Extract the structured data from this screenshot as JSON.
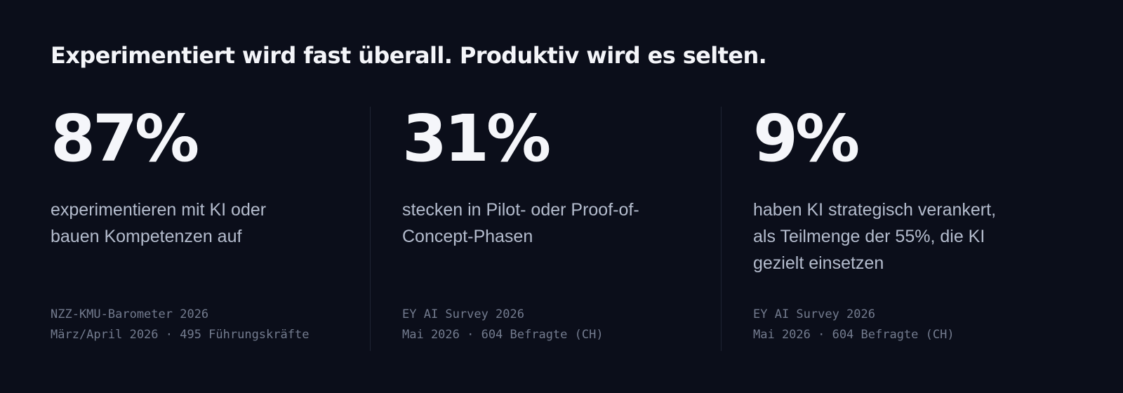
{
  "headline": "Experimentiert wird fast überall. Produktiv wird es selten.",
  "stats": [
    {
      "value": "87%",
      "description": "experimentieren mit KI oder bauen Kompetenzen auf",
      "source_title": "NZZ-KMU-Barometer 2026",
      "source_detail": "März/April 2026 · 495 Führungskräfte"
    },
    {
      "value": "31%",
      "description": "stecken in Pilot- oder Proof-of-Concept-Phasen",
      "source_title": "EY AI Survey 2026",
      "source_detail": "Mai 2026 · 604 Befragte (CH)"
    },
    {
      "value": "9%",
      "description": "haben KI strategisch verankert, als Teilmenge der 55%, die KI gezielt einsetzen",
      "source_title": "EY AI Survey 2026",
      "source_detail": "Mai 2026 · 604 Befragte (CH)"
    }
  ],
  "colors": {
    "background": "#0b0e1a",
    "headline": "#f4f5f9",
    "value": "#f5f6fa",
    "description": "#b4bccd",
    "source": "#737b8e",
    "divider": "#1f2433"
  }
}
